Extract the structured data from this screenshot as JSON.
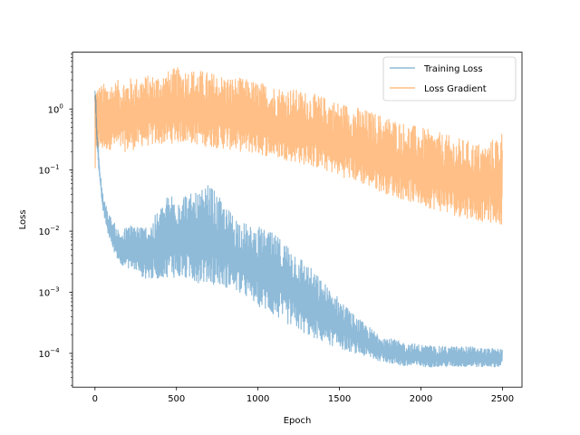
{
  "chart_data": {
    "type": "line",
    "title": "",
    "xlabel": "Epoch",
    "ylabel": "Loss",
    "yscale": "log",
    "xlim": [
      -138,
      2620
    ],
    "ylim": [
      2.8e-05,
      8.5
    ],
    "x_ticks": [
      0,
      500,
      1000,
      1500,
      2000,
      2500
    ],
    "x_tick_labels": [
      "0",
      "500",
      "1000",
      "1500",
      "2000",
      "2500"
    ],
    "y_ticks": [
      0.0001,
      0.001,
      0.01,
      0.1,
      1
    ],
    "y_tick_labels": [
      "10",
      "10",
      "10",
      "10",
      "10"
    ],
    "y_tick_exponents": [
      "−4",
      "−3",
      "−2",
      "−1",
      "0"
    ],
    "legend_position": "top-right",
    "grid": false,
    "series": [
      {
        "name": "Training Loss",
        "color": "#1f77b4",
        "opacity": 0.5,
        "x": [
          0,
          5,
          10,
          20,
          30,
          50,
          80,
          110,
          150,
          200,
          250,
          300,
          350,
          400,
          450,
          500,
          550,
          600,
          650,
          700,
          750,
          800,
          850,
          900,
          950,
          1000,
          1100,
          1200,
          1300,
          1400,
          1500,
          1600,
          1700,
          1800,
          1900,
          2000,
          2100,
          2200,
          2300,
          2400,
          2500
        ],
        "lower": [
          1.5,
          0.8,
          0.3,
          0.12,
          0.06,
          0.02,
          0.009,
          0.005,
          0.003,
          0.0025,
          0.0022,
          0.0017,
          0.0016,
          0.0017,
          0.0018,
          0.0017,
          0.0016,
          0.0015,
          0.0014,
          0.0014,
          0.0013,
          0.0012,
          0.0011,
          0.0009,
          0.00075,
          0.0006,
          0.0004,
          0.00028,
          0.0002,
          0.00015,
          0.00012,
          0.0001,
          8e-05,
          7e-05,
          6e-05,
          6e-05,
          6e-05,
          6e-05,
          6e-05,
          6e-05,
          6e-05
        ],
        "upper": [
          2.5,
          1.8,
          0.7,
          0.25,
          0.1,
          0.04,
          0.02,
          0.015,
          0.01,
          0.012,
          0.014,
          0.012,
          0.015,
          0.025,
          0.04,
          0.05,
          0.045,
          0.04,
          0.045,
          0.06,
          0.04,
          0.025,
          0.02,
          0.015,
          0.012,
          0.012,
          0.009,
          0.006,
          0.003,
          0.0015,
          0.0008,
          0.0004,
          0.00025,
          0.00018,
          0.00015,
          0.00014,
          0.00013,
          0.00013,
          0.00013,
          0.00012,
          0.00012
        ]
      },
      {
        "name": "Loss Gradient",
        "color": "#ff7f0e",
        "opacity": 0.5,
        "x": [
          0,
          5,
          10,
          20,
          50,
          100,
          150,
          200,
          250,
          300,
          350,
          400,
          450,
          500,
          550,
          600,
          650,
          700,
          750,
          800,
          900,
          1000,
          1100,
          1200,
          1300,
          1400,
          1500,
          1600,
          1700,
          1800,
          1900,
          2000,
          2100,
          2200,
          2300,
          2400,
          2500
        ],
        "lower": [
          0.065,
          0.1,
          0.15,
          0.2,
          0.2,
          0.22,
          0.2,
          0.2,
          0.22,
          0.25,
          0.25,
          0.26,
          0.27,
          0.28,
          0.28,
          0.27,
          0.25,
          0.24,
          0.23,
          0.22,
          0.2,
          0.18,
          0.16,
          0.14,
          0.12,
          0.1,
          0.08,
          0.065,
          0.05,
          0.04,
          0.032,
          0.026,
          0.022,
          0.018,
          0.016,
          0.014,
          0.013
        ],
        "upper": [
          3.0,
          2.8,
          2.6,
          2.5,
          2.6,
          2.8,
          3.0,
          3.2,
          3.3,
          3.5,
          3.6,
          3.8,
          4.2,
          4.8,
          4.6,
          4.5,
          4.3,
          4.0,
          3.8,
          3.5,
          3.2,
          2.8,
          2.4,
          2.2,
          1.9,
          1.6,
          1.3,
          1.1,
          0.9,
          0.75,
          0.6,
          0.5,
          0.42,
          0.35,
          0.3,
          0.26,
          0.45
        ]
      }
    ]
  }
}
